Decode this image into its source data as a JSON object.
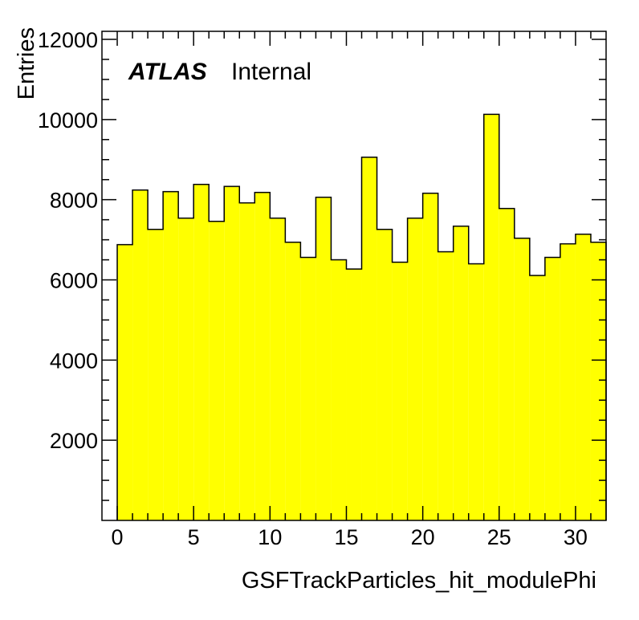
{
  "chart_data": {
    "type": "bar",
    "histogram": true,
    "xlabel": "GSFTrackParticles_hit_modulePhi",
    "ylabel": "Entries",
    "label_bold": "ATLAS",
    "label_status": "Internal",
    "xlim": [
      -1,
      32
    ],
    "ylim": [
      0,
      12200
    ],
    "bin_start": 0,
    "bin_width": 1,
    "x_ticks": [
      0,
      5,
      10,
      15,
      20,
      25,
      30
    ],
    "x_tick_labels": [
      "0",
      "5",
      "10",
      "15",
      "20",
      "25",
      "30"
    ],
    "y_ticks": [
      2000,
      4000,
      6000,
      8000,
      10000,
      12000
    ],
    "y_tick_labels": [
      "2000",
      "4000",
      "6000",
      "8000",
      "10000",
      "12000"
    ],
    "values": [
      6880,
      8240,
      7260,
      8200,
      7540,
      8380,
      7460,
      8330,
      7920,
      8180,
      7540,
      6940,
      6560,
      8060,
      6500,
      6270,
      9060,
      7260,
      6440,
      7540,
      8160,
      6700,
      7340,
      6400,
      10130,
      7780,
      7040,
      6110,
      6560,
      6900,
      7140,
      6940
    ],
    "fill_color": "#ffff00",
    "line_color": "#000000"
  }
}
